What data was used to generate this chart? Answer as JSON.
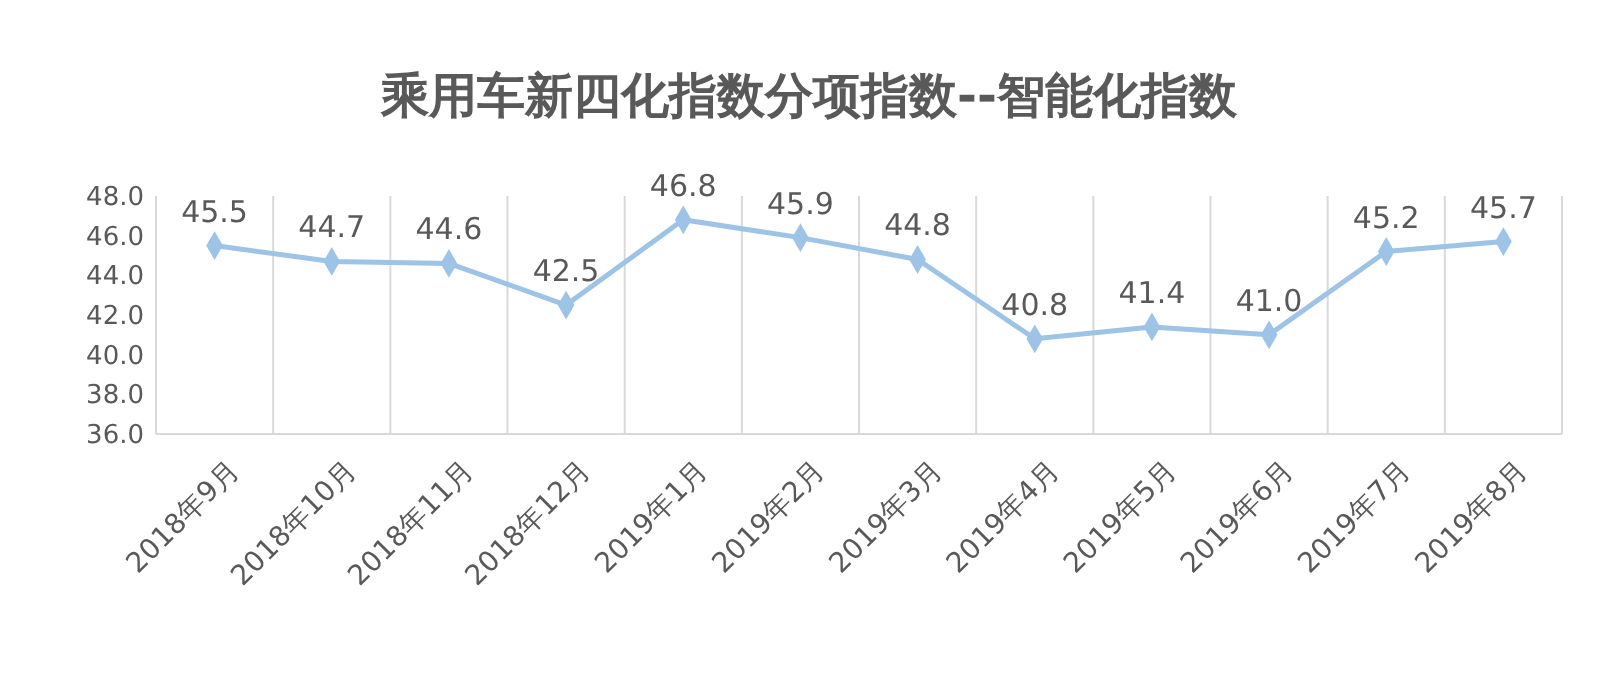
{
  "chart_data": {
    "type": "line",
    "title": "乘用车新四化指数分项指数--智能化指数",
    "categories": [
      "2018年9月",
      "2018年10月",
      "2018年11月",
      "2018年12月",
      "2019年1月",
      "2019年2月",
      "2019年3月",
      "2019年4月",
      "2019年5月",
      "2019年6月",
      "2019年7月",
      "2019年8月"
    ],
    "series": [
      {
        "color": "#9dc3e6",
        "values": [
          45.5,
          44.7,
          44.6,
          42.5,
          46.8,
          45.9,
          44.8,
          40.8,
          41.4,
          41.0,
          45.2,
          45.7
        ],
        "value_labels": [
          "45.5",
          "44.7",
          "44.6",
          "42.5",
          "46.8",
          "45.9",
          "44.8",
          "40.8",
          "41.4",
          "41.0",
          "45.2",
          "45.7"
        ]
      }
    ],
    "ylim": [
      36,
      48
    ],
    "yticks": [
      {
        "value": 36,
        "label": "36.0"
      },
      {
        "value": 38,
        "label": "38.0"
      },
      {
        "value": 40,
        "label": "40.0"
      },
      {
        "value": 42,
        "label": "42.0"
      },
      {
        "value": 44,
        "label": "44.0"
      },
      {
        "value": 46,
        "label": "46.0"
      },
      {
        "value": 48,
        "label": "48.0"
      }
    ],
    "grid": "x",
    "marker": "diamond",
    "line_style": "solid"
  }
}
